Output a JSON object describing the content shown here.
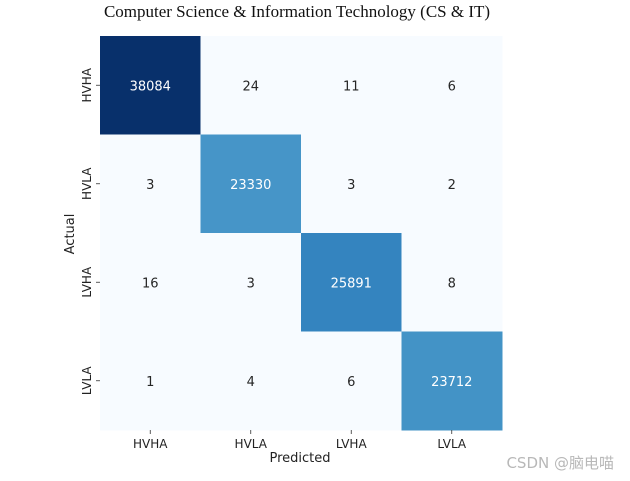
{
  "chart_data": {
    "type": "heatmap",
    "title": "Computer Science & Information Technology (CS & IT)",
    "xlabel": "Predicted",
    "ylabel": "Actual",
    "x_categories": [
      "HVHA",
      "HVLA",
      "LVHA",
      "LVLA"
    ],
    "y_categories": [
      "HVHA",
      "HVLA",
      "LVHA",
      "LVLA"
    ],
    "values": [
      [
        38084,
        24,
        11,
        6
      ],
      [
        3,
        23330,
        3,
        2
      ],
      [
        16,
        3,
        25891,
        8
      ],
      [
        1,
        4,
        6,
        23712
      ]
    ],
    "colormap": "Blues",
    "colorbar": false,
    "annotated": true
  },
  "watermark": "CSDN @脑电喵"
}
